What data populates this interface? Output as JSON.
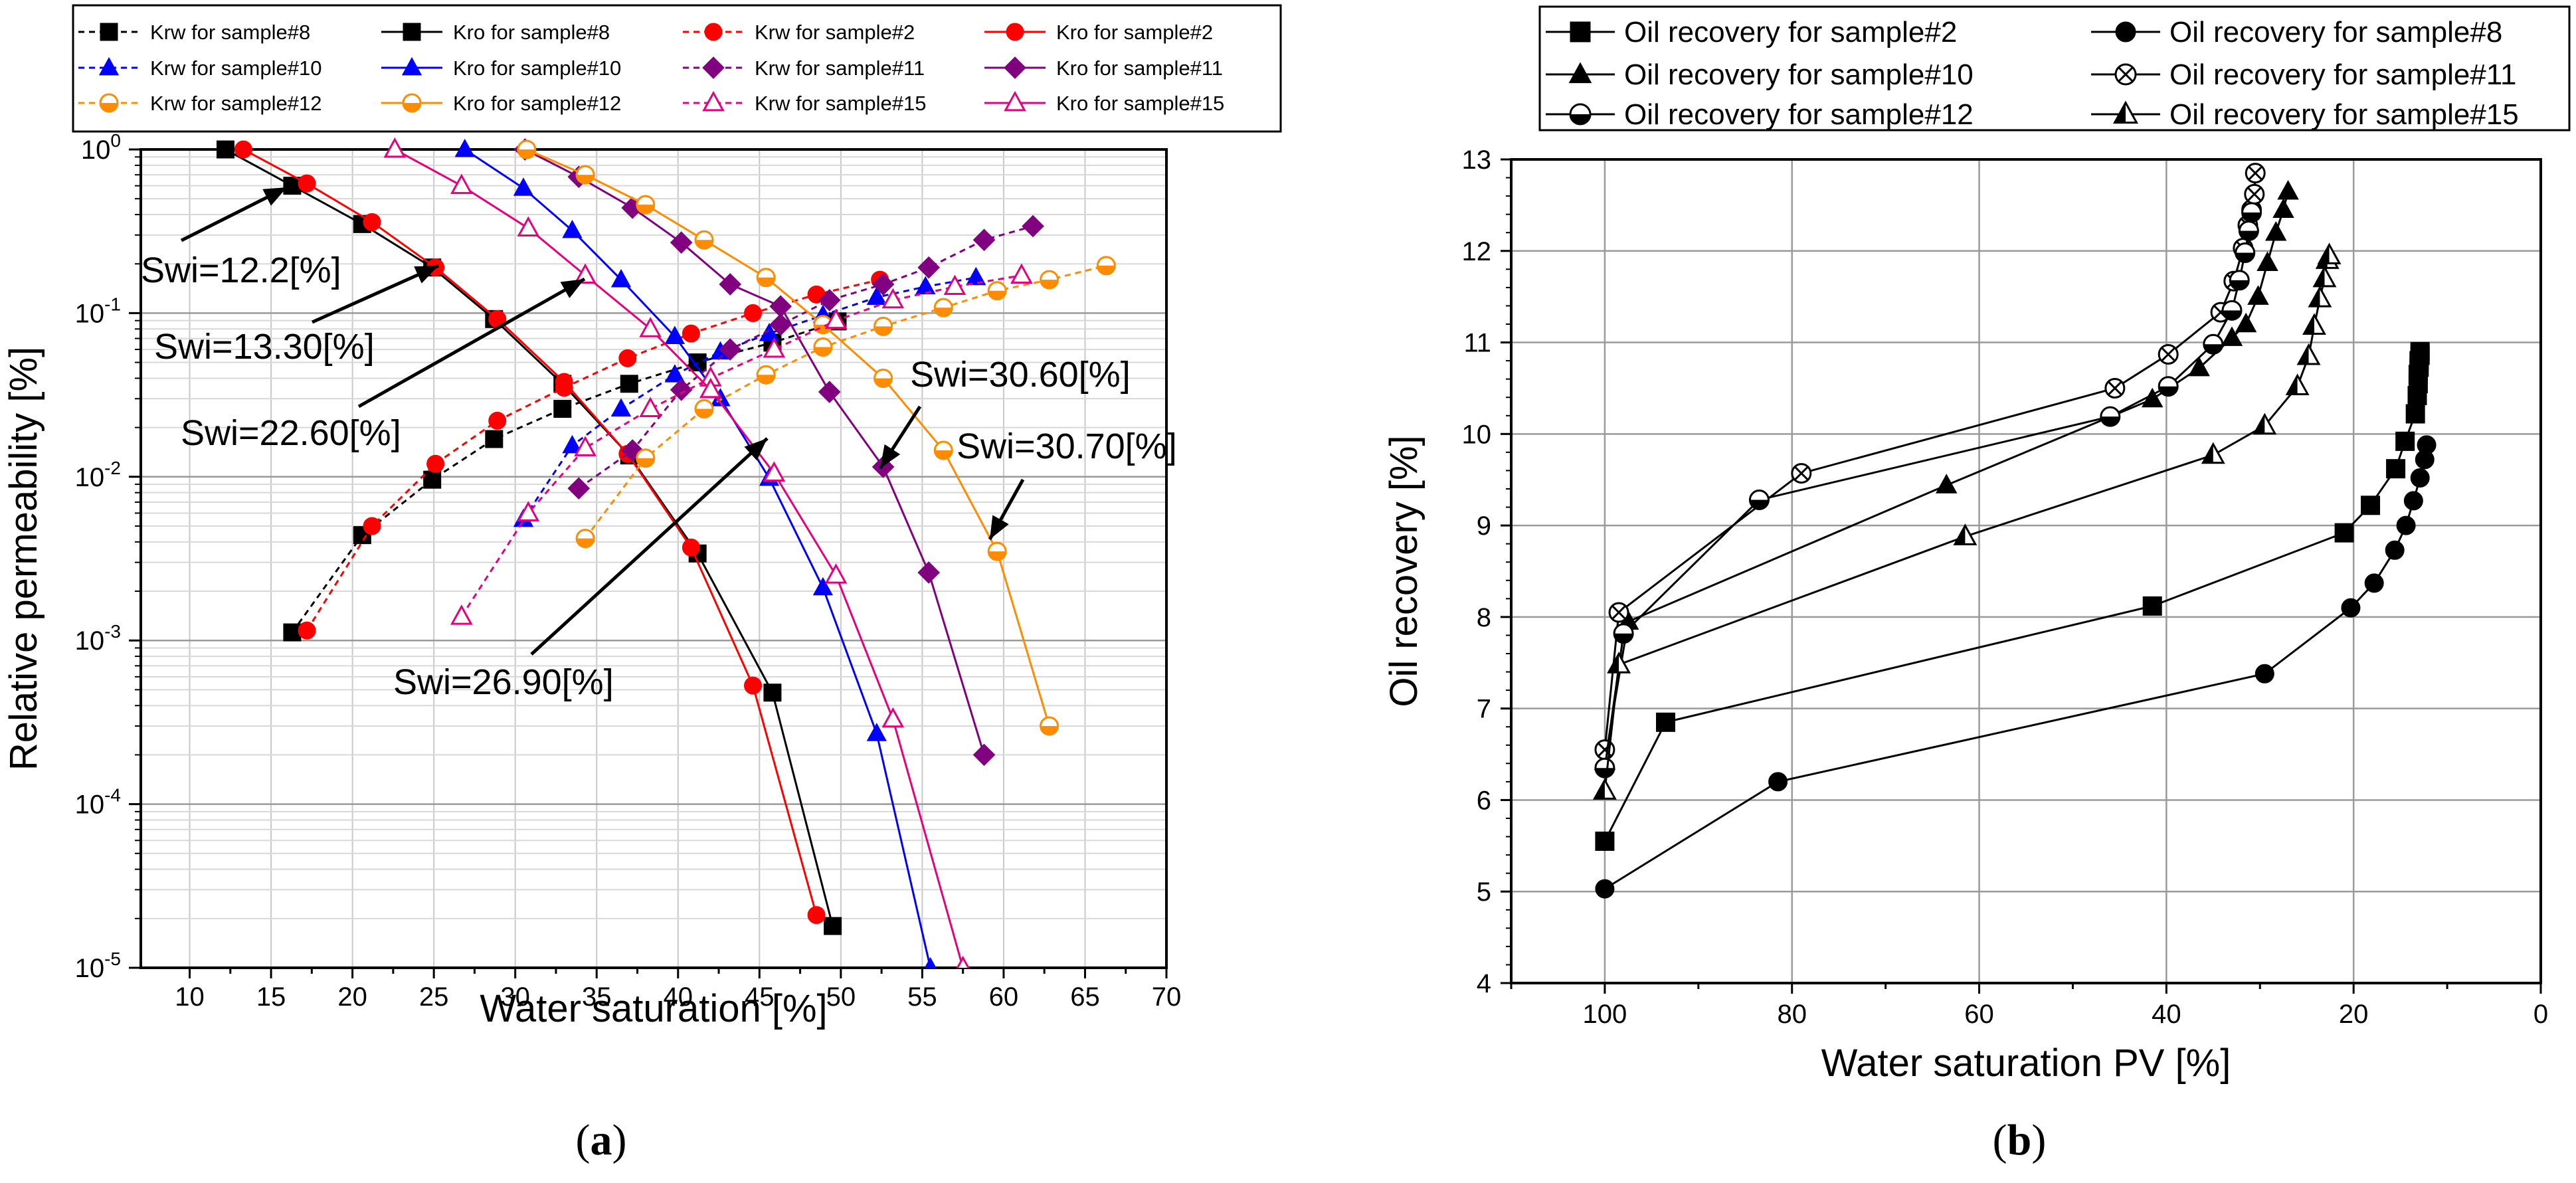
{
  "chart_data": [
    {
      "panel_label": "(a)",
      "type": "line",
      "xlabel": "Water saturation [%]",
      "ylabel": "Relative permeability [%]",
      "xlim": [
        7,
        70
      ],
      "ylim": [
        1e-05,
        1
      ],
      "yscale": "log",
      "grid": true,
      "legend_position": "top",
      "x_ticks": [
        "10",
        "15",
        "20",
        "25",
        "30",
        "35",
        "40",
        "45",
        "50",
        "55",
        "60",
        "65",
        "70"
      ],
      "y_ticks": [
        {
          "value": 1,
          "label": "10",
          "exp": "0",
          "base_only": true,
          "label_text": "10"
        },
        {
          "value": 0.1,
          "label": "10",
          "exp": "-1"
        },
        {
          "value": 0.01,
          "label": "10",
          "exp": "-2"
        },
        {
          "value": 0.001,
          "label": "10",
          "exp": "-3"
        },
        {
          "value": 0.0001,
          "label": "10",
          "exp": "-4"
        },
        {
          "value": 1e-05,
          "label": "10",
          "exp": "-5"
        }
      ],
      "series": [
        {
          "name": "Krw for sample#8",
          "color": "#000000",
          "marker": "square",
          "dashed": true,
          "x": [
            16.3,
            20.6,
            24.9,
            28.7,
            32.9,
            37.0,
            41.2,
            45.8,
            49.8
          ],
          "y": [
            0.00112,
            0.0044,
            0.0096,
            0.017,
            0.026,
            0.037,
            0.05,
            0.066,
            0.089
          ]
        },
        {
          "name": "Kro for sample#8",
          "color": "#000000",
          "marker": "square",
          "dashed": false,
          "x": [
            12.2,
            16.3,
            20.6,
            24.9,
            28.7,
            32.9,
            37.0,
            41.2,
            45.8,
            49.5
          ],
          "y": [
            1.0,
            0.6,
            0.35,
            0.19,
            0.092,
            0.037,
            0.0135,
            0.0034,
            0.00048,
            1.8e-05
          ]
        },
        {
          "name": "Krw for sample#2",
          "color": "#ff0000",
          "marker": "circle",
          "dashed": true,
          "x": [
            17.2,
            21.2,
            25.1,
            28.9,
            33.0,
            36.9,
            40.8,
            44.6,
            48.5,
            52.4
          ],
          "y": [
            0.00115,
            0.005,
            0.012,
            0.022,
            0.035,
            0.053,
            0.075,
            0.1,
            0.13,
            0.16
          ]
        },
        {
          "name": "Kro for sample#2",
          "color": "#ff0000",
          "marker": "circle",
          "dashed": false,
          "x": [
            13.3,
            17.2,
            21.2,
            25.1,
            28.9,
            33.0,
            36.9,
            40.8,
            44.6,
            48.5
          ],
          "y": [
            1.0,
            0.62,
            0.36,
            0.19,
            0.092,
            0.038,
            0.0138,
            0.0037,
            0.00053,
            2.1e-05
          ]
        },
        {
          "name": "Krw for sample#10",
          "color": "#0000ff",
          "marker": "triangle",
          "dashed": true,
          "x": [
            30.5,
            33.5,
            36.5,
            39.8,
            42.6,
            45.6,
            48.9,
            52.2,
            55.2,
            58.3
          ],
          "y": [
            0.0055,
            0.0155,
            0.026,
            0.042,
            0.058,
            0.075,
            0.097,
            0.125,
            0.145,
            0.165
          ]
        },
        {
          "name": "Kro for sample#10",
          "color": "#0000ff",
          "marker": "triangle",
          "dashed": false,
          "x": [
            26.9,
            30.5,
            33.5,
            36.5,
            39.8,
            42.6,
            45.6,
            48.9,
            52.2,
            55.5
          ],
          "y": [
            1.0,
            0.58,
            0.32,
            0.16,
            0.072,
            0.03,
            0.0098,
            0.0021,
            0.00027,
            1e-05
          ]
        },
        {
          "name": "Krw for sample#11",
          "color": "#800080",
          "marker": "diamond",
          "dashed": true,
          "x": [
            33.9,
            37.2,
            40.2,
            43.2,
            46.3,
            49.3,
            52.6,
            55.4,
            58.8,
            61.8
          ],
          "y": [
            0.0085,
            0.0145,
            0.034,
            0.06,
            0.085,
            0.12,
            0.15,
            0.19,
            0.28,
            0.34
          ]
        },
        {
          "name": "Kro for sample#11",
          "color": "#800080",
          "marker": "diamond",
          "dashed": false,
          "x": [
            30.6,
            33.9,
            37.2,
            40.2,
            43.2,
            46.3,
            49.3,
            52.6,
            55.4,
            58.8
          ],
          "y": [
            1.0,
            0.68,
            0.44,
            0.27,
            0.15,
            0.11,
            0.033,
            0.0115,
            0.0026,
            0.0002
          ]
        },
        {
          "name": "Krw for sample#12",
          "color": "#ff8c00",
          "marker": "half-circle",
          "dashed": true,
          "x": [
            34.3,
            38.0,
            41.6,
            45.4,
            48.9,
            52.6,
            56.3,
            59.6,
            62.8,
            66.3
          ],
          "y": [
            0.0042,
            0.013,
            0.026,
            0.042,
            0.062,
            0.083,
            0.108,
            0.137,
            0.16,
            0.195
          ]
        },
        {
          "name": "Kro for sample#12",
          "color": "#ff8c00",
          "marker": "half-circle",
          "dashed": false,
          "x": [
            30.7,
            34.3,
            38.0,
            41.6,
            45.4,
            48.9,
            52.6,
            56.3,
            59.6,
            62.8
          ],
          "y": [
            1.0,
            0.7,
            0.46,
            0.28,
            0.165,
            0.085,
            0.04,
            0.0145,
            0.0035,
            0.0003
          ]
        },
        {
          "name": "Krw for sample#15",
          "color": "#e5007e",
          "marker": "open-triangle",
          "dashed": true,
          "x": [
            26.7,
            30.8,
            34.3,
            38.3,
            42.0,
            45.9,
            49.7,
            53.2,
            57.0,
            61.1
          ],
          "y": [
            0.0014,
            0.006,
            0.015,
            0.026,
            0.04,
            0.06,
            0.09,
            0.12,
            0.145,
            0.17
          ]
        },
        {
          "name": "Kro for sample#15",
          "color": "#e5007e",
          "marker": "open-triangle",
          "dashed": false,
          "x": [
            22.6,
            26.7,
            30.8,
            34.3,
            38.3,
            42.0,
            45.9,
            49.7,
            53.2,
            57.5
          ],
          "y": [
            1.0,
            0.6,
            0.33,
            0.17,
            0.08,
            0.034,
            0.0105,
            0.0025,
            0.00033,
            1e-05
          ]
        }
      ],
      "annotations": [
        {
          "text": "Swi=12.2[%]",
          "x": 12.2,
          "y": 1.0
        },
        {
          "text": "Swi=13.30[%]",
          "x": 13.3,
          "y": 1.0
        },
        {
          "text": "Swi=22.60[%]",
          "x": 22.6,
          "y": 1.0
        },
        {
          "text": "Swi=30.60[%]",
          "x": 30.6,
          "y": 1.0
        },
        {
          "text": "Swi=30.70[%]",
          "x": 30.7,
          "y": 1.0
        },
        {
          "text": "Swi=26.90[%]",
          "x": 26.9,
          "y": 1.0
        }
      ]
    },
    {
      "panel_label": "(b)",
      "type": "line",
      "xlabel": "Water saturation PV [%]",
      "ylabel": "Oil recovery [%]",
      "xlim": [
        110,
        0
      ],
      "ylim": [
        4,
        13
      ],
      "grid": true,
      "legend_position": "top",
      "x_ticks": [
        "100",
        "80",
        "60",
        "40",
        "20",
        "0"
      ],
      "y_ticks": [
        "4",
        "5",
        "6",
        "7",
        "8",
        "9",
        "10",
        "11",
        "12",
        "13"
      ],
      "series": [
        {
          "name": "Oil recovery for sample#2",
          "color": "#000000",
          "marker": "square",
          "x": [
            100,
            93.5,
            41.5,
            21.0,
            18.2,
            15.5,
            14.5,
            13.4,
            13.2,
            13.1,
            13.1,
            13.0,
            13.0,
            12.9,
            12.9
          ],
          "y": [
            5.55,
            6.85,
            8.12,
            8.92,
            9.22,
            9.62,
            9.92,
            10.22,
            10.42,
            10.55,
            10.65,
            10.73,
            10.8,
            10.86,
            10.9
          ]
        },
        {
          "name": "Oil recovery for sample#8",
          "color": "#000000",
          "marker": "circle",
          "x": [
            100,
            81.5,
            29.5,
            20.3,
            17.8,
            15.6,
            14.4,
            13.6,
            12.9,
            12.4,
            12.2
          ],
          "y": [
            5.03,
            6.2,
            7.38,
            8.1,
            8.37,
            8.73,
            9.0,
            9.27,
            9.52,
            9.72,
            9.88
          ]
        },
        {
          "name": "Oil recovery for sample#10",
          "color": "#000000",
          "marker": "triangle",
          "x": [
            100,
            97.5,
            63.5,
            41.5,
            36.5,
            33.0,
            31.5,
            30.2,
            29.2,
            28.3,
            27.5,
            27.0
          ],
          "y": [
            6.42,
            7.95,
            9.44,
            10.38,
            10.72,
            11.05,
            11.2,
            11.5,
            11.87,
            12.2,
            12.45,
            12.65
          ]
        },
        {
          "name": "Oil recovery for sample#11",
          "color": "#000000",
          "marker": "crossed-circle",
          "x": [
            100,
            98.5,
            79.0,
            45.5,
            39.8,
            34.2,
            32.8,
            31.8,
            31.3,
            30.9,
            30.6,
            30.5
          ],
          "y": [
            6.55,
            8.05,
            9.57,
            10.5,
            10.87,
            11.33,
            11.67,
            12.03,
            12.28,
            12.45,
            12.62,
            12.85
          ]
        },
        {
          "name": "Oil recovery for sample#12",
          "color": "#000000",
          "marker": "half-circle",
          "x": [
            100,
            98.0,
            83.5,
            46.0,
            39.8,
            35.0,
            33.0,
            32.2,
            31.6,
            31.2,
            30.9
          ],
          "y": [
            6.35,
            7.82,
            9.28,
            10.19,
            10.52,
            10.98,
            11.35,
            11.68,
            11.98,
            12.22,
            12.42
          ]
        },
        {
          "name": "Oil recovery for sample#15",
          "color": "#000000",
          "marker": "half-triangle",
          "x": [
            100,
            98.5,
            61.5,
            35.0,
            29.5,
            26.0,
            24.8,
            24.2,
            23.6,
            23.1,
            22.8,
            22.6
          ],
          "y": [
            6.1,
            7.48,
            8.88,
            9.77,
            10.09,
            10.52,
            10.85,
            11.18,
            11.48,
            11.7,
            11.9,
            11.95
          ]
        }
      ]
    }
  ]
}
